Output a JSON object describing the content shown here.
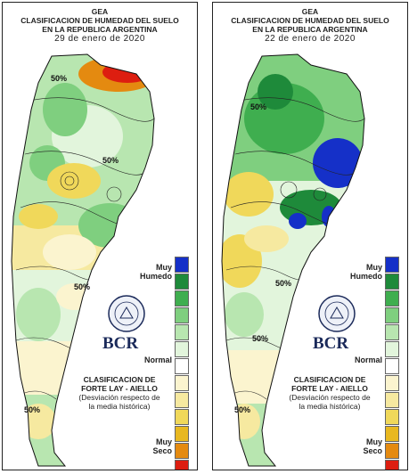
{
  "panels": [
    {
      "org": "GEA",
      "title_line1": "CLASIFICACION DE HUMEDAD DEL SUELO",
      "title_line2": "EN LA REPUBLICA ARGENTINA",
      "date": "29 de enero de 2020",
      "isolines": [
        "50%",
        "50%",
        "50%",
        "50%"
      ]
    },
    {
      "org": "GEA",
      "title_line1": "CLASIFICACION DE HUMEDAD DEL SUELO",
      "title_line2": "EN LA REPUBLICA ARGENTINA",
      "date": "22 de enero de 2020",
      "isolines": [
        "50%",
        "50%",
        "50%",
        "50%"
      ]
    }
  ],
  "legend": {
    "label_wet_line1": "Muy",
    "label_wet_line2": "Humedo",
    "label_normal": "Normal",
    "label_dry_line1": "Muy",
    "label_dry_line2": "Seco",
    "colors": [
      "#1530c8",
      "#1e8a3a",
      "#3fae4f",
      "#7fcf7f",
      "#b8e6b0",
      "#e2f5dc",
      "#ffffff",
      "#fbf4cf",
      "#f6e9a0",
      "#f0d85a",
      "#e8b820",
      "#e48a10",
      "#dd1e10"
    ]
  },
  "logo": {
    "text": "BCR",
    "seal_text": "BOLSA DE COMERCIO DE ROSARIO"
  },
  "method": {
    "line1": "CLASIFICACION DE",
    "line2": "FORTE LAY - AIELLO",
    "line3": "(Desviación respecto de",
    "line4": "la media histórica)"
  }
}
